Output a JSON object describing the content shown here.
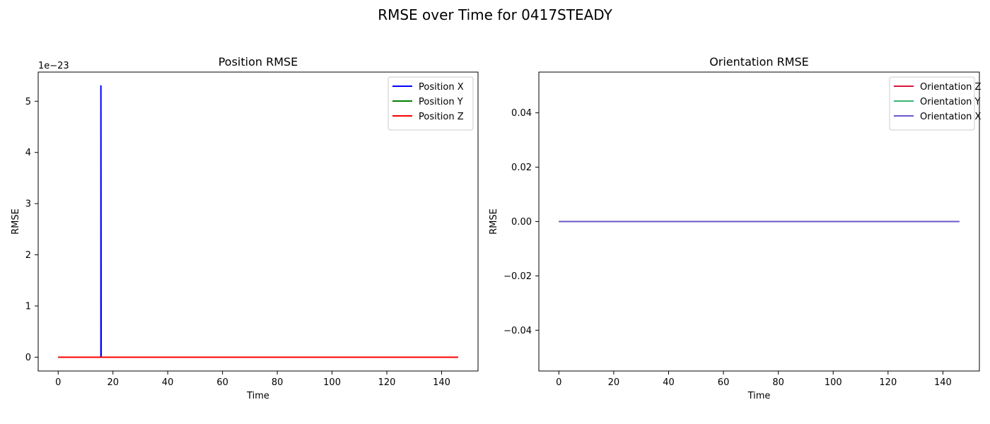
{
  "figure": {
    "suptitle": "RMSE over Time for 0417STEADY"
  },
  "chart_data": [
    {
      "type": "line",
      "title": "Position RMSE",
      "xlabel": "Time",
      "ylabel": "RMSE",
      "offset_text": "1e−23",
      "xlim": [
        -7.3,
        153.3
      ],
      "ylim": [
        -0.27,
        5.57
      ],
      "x_ticks": [
        0,
        20,
        40,
        60,
        80,
        100,
        120,
        140
      ],
      "x_tick_labels": [
        "0",
        "20",
        "40",
        "60",
        "80",
        "100",
        "120",
        "140"
      ],
      "y_ticks": [
        0,
        1,
        2,
        3,
        4,
        5
      ],
      "y_tick_labels": [
        "0",
        "1",
        "2",
        "3",
        "4",
        "5"
      ],
      "grid": false,
      "legend": "top-right",
      "series": [
        {
          "name": "Position X",
          "color": "#0000ff",
          "x": [
            0,
            15.6,
            15.6,
            15.6,
            15.7,
            146
          ],
          "y": [
            0,
            0,
            5.3,
            5.3,
            0,
            0
          ]
        },
        {
          "name": "Position Y",
          "color": "#008000",
          "x": [
            0,
            146
          ],
          "y": [
            0,
            0
          ]
        },
        {
          "name": "Position Z",
          "color": "#ff0000",
          "x": [
            0,
            146
          ],
          "y": [
            0,
            0
          ]
        }
      ]
    },
    {
      "type": "line",
      "title": "Orientation RMSE",
      "xlabel": "Time",
      "ylabel": "RMSE",
      "offset_text": "",
      "xlim": [
        -7.3,
        153.3
      ],
      "ylim": [
        -0.055,
        0.055
      ],
      "x_ticks": [
        0,
        20,
        40,
        60,
        80,
        100,
        120,
        140
      ],
      "x_tick_labels": [
        "0",
        "20",
        "40",
        "60",
        "80",
        "100",
        "120",
        "140"
      ],
      "y_ticks": [
        -0.04,
        -0.02,
        0,
        0.02,
        0.04
      ],
      "y_tick_labels": [
        "−0.04",
        "−0.02",
        "0.00",
        "0.02",
        "0.04"
      ],
      "grid": false,
      "legend": "top-right",
      "series": [
        {
          "name": "Orientation Z",
          "color": "#dc143c",
          "x": [
            0,
            146
          ],
          "y": [
            0,
            0
          ]
        },
        {
          "name": "Orientation Y",
          "color": "#3cb371",
          "x": [
            0,
            146
          ],
          "y": [
            0,
            0
          ]
        },
        {
          "name": "Orientation X",
          "color": "#6a5acd",
          "x": [
            0,
            146
          ],
          "y": [
            0,
            0
          ]
        }
      ]
    }
  ]
}
